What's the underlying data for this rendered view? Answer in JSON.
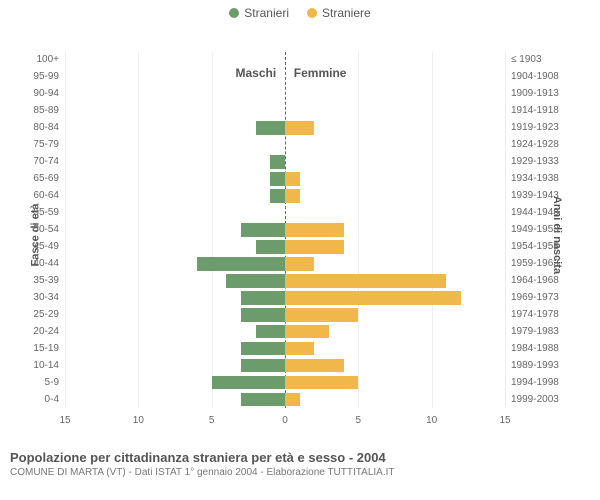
{
  "legend": {
    "male": {
      "label": "Stranieri",
      "color": "#6c9c6c"
    },
    "female": {
      "label": "Straniere",
      "color": "#f0b84a"
    }
  },
  "columns": {
    "left": "Maschi",
    "right": "Femmine"
  },
  "axis_titles": {
    "left": "Fasce di età",
    "right": "Anni di nascita"
  },
  "chart": {
    "type": "population-pyramid",
    "x_max": 15,
    "x_ticks": [
      0,
      5,
      10,
      15
    ],
    "grid_color": "#eeeeee",
    "centerline_color": "#666666",
    "background_color": "#ffffff",
    "rows": [
      {
        "age": "100+",
        "birth": "≤ 1903",
        "m": 0,
        "f": 0
      },
      {
        "age": "95-99",
        "birth": "1904-1908",
        "m": 0,
        "f": 0
      },
      {
        "age": "90-94",
        "birth": "1909-1913",
        "m": 0,
        "f": 0
      },
      {
        "age": "85-89",
        "birth": "1914-1918",
        "m": 0,
        "f": 0
      },
      {
        "age": "80-84",
        "birth": "1919-1923",
        "m": 2,
        "f": 2
      },
      {
        "age": "75-79",
        "birth": "1924-1928",
        "m": 0,
        "f": 0
      },
      {
        "age": "70-74",
        "birth": "1929-1933",
        "m": 1,
        "f": 0
      },
      {
        "age": "65-69",
        "birth": "1934-1938",
        "m": 1,
        "f": 1
      },
      {
        "age": "60-64",
        "birth": "1939-1943",
        "m": 1,
        "f": 1
      },
      {
        "age": "55-59",
        "birth": "1944-1948",
        "m": 0,
        "f": 0
      },
      {
        "age": "50-54",
        "birth": "1949-1953",
        "m": 3,
        "f": 4
      },
      {
        "age": "45-49",
        "birth": "1954-1958",
        "m": 2,
        "f": 4
      },
      {
        "age": "40-44",
        "birth": "1959-1963",
        "m": 6,
        "f": 2
      },
      {
        "age": "35-39",
        "birth": "1964-1968",
        "m": 4,
        "f": 11
      },
      {
        "age": "30-34",
        "birth": "1969-1973",
        "m": 3,
        "f": 12
      },
      {
        "age": "25-29",
        "birth": "1974-1978",
        "m": 3,
        "f": 5
      },
      {
        "age": "20-24",
        "birth": "1979-1983",
        "m": 2,
        "f": 3
      },
      {
        "age": "15-19",
        "birth": "1984-1988",
        "m": 3,
        "f": 2
      },
      {
        "age": "10-14",
        "birth": "1989-1993",
        "m": 3,
        "f": 4
      },
      {
        "age": "5-9",
        "birth": "1994-1998",
        "m": 5,
        "f": 5
      },
      {
        "age": "0-4",
        "birth": "1999-2003",
        "m": 3,
        "f": 1
      }
    ]
  },
  "footer": {
    "title": "Popolazione per cittadinanza straniera per età e sesso - 2004",
    "subtitle": "COMUNE DI MARTA (VT) - Dati ISTAT 1° gennaio 2004 - Elaborazione TUTTITALIA.IT"
  }
}
